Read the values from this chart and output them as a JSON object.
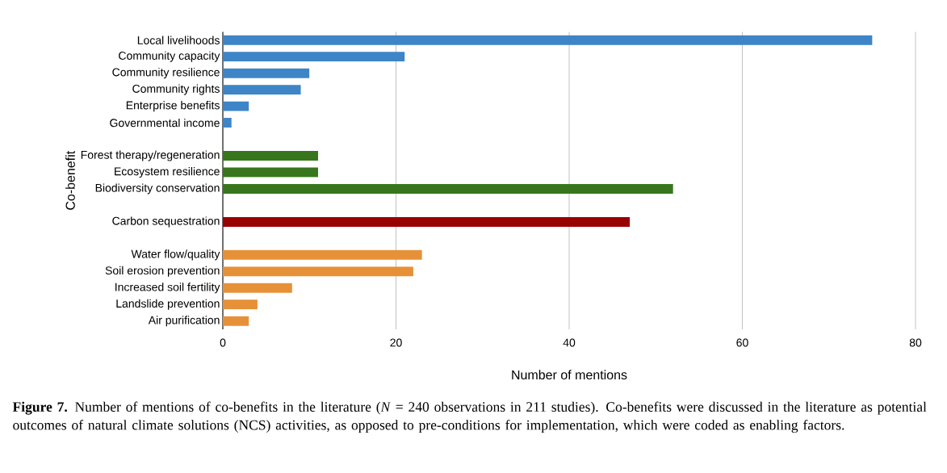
{
  "chart_data": {
    "type": "bar",
    "orientation": "horizontal",
    "categories": [
      "Local livelihoods",
      "Community capacity",
      "Community resilience",
      "Community rights",
      "Enterprise benefits",
      "Governmental income",
      null,
      "Forest therapy/regeneration",
      "Ecosystem resilience",
      "Biodiversity conservation",
      null,
      "Carbon sequestration",
      null,
      "Water flow/quality",
      "Soil erosion prevention",
      "Increased soil fertility",
      "Landslide prevention",
      "Air purification"
    ],
    "values": [
      75,
      21,
      10,
      9,
      3,
      1,
      null,
      11,
      11,
      52,
      null,
      47,
      null,
      23,
      22,
      8,
      4,
      3
    ],
    "colors": [
      "#3d85c6",
      "#3d85c6",
      "#3d85c6",
      "#3d85c6",
      "#3d85c6",
      "#3d85c6",
      null,
      "#38761d",
      "#38761d",
      "#38761d",
      null,
      "#990000",
      null,
      "#e69138",
      "#e69138",
      "#e69138",
      "#e69138",
      "#e69138"
    ],
    "xlim": [
      0,
      80
    ],
    "xticks": [
      0,
      20,
      40,
      60,
      80
    ],
    "grid": "x",
    "xlabel": "Number of mentions",
    "ylabel": "Co-benefit",
    "annotations": [
      "**Figure 7.** Number of mentions of co-benefits in the literature (*N* = 240 observations in 211 studies). Co-benefits were discussed in the literature as potential outcomes of natural climate solutions (NCS) activities, as opposed to pre-conditions for implementation, which were coded as enabling factors."
    ]
  }
}
